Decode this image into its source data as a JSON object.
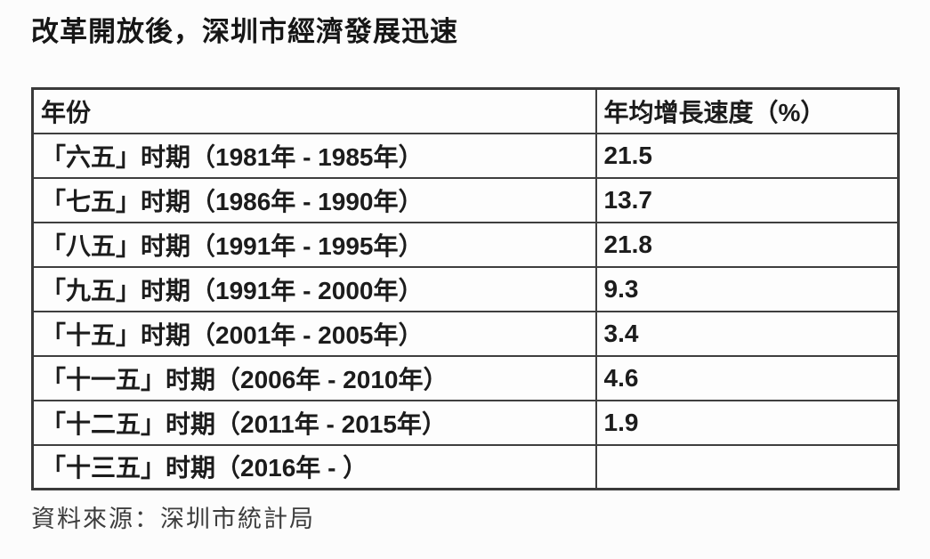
{
  "title": "改革開放後，深圳市經濟發展迅速",
  "table": {
    "headers": [
      "年份",
      "年均增長速度（%）"
    ],
    "rows": [
      {
        "period": "「六五」时期（1981年 - 1985年）",
        "rate": "21.5"
      },
      {
        "period": "「七五」时期（1986年 - 1990年）",
        "rate": "13.7"
      },
      {
        "period": "「八五」时期（1991年 - 1995年）",
        "rate": "21.8"
      },
      {
        "period": "「九五」时期（1991年 - 2000年）",
        "rate": "9.3"
      },
      {
        "period": "「十五」时期（2001年 - 2005年）",
        "rate": "3.4"
      },
      {
        "period": "「十一五」时期（2006年 - 2010年）",
        "rate": "4.6"
      },
      {
        "period": "「十二五」时期（2011年 - 2015年）",
        "rate": "1.9"
      },
      {
        "period": "「十三五」时期（2016年 - ）",
        "rate": ""
      }
    ]
  },
  "source": "資料來源：深圳市統計局",
  "colors": {
    "background": "#fcfcfc",
    "table_border": "#3f3f3f",
    "text": "#1c1c1c",
    "source_text": "#3d3d3d"
  },
  "chart_data": {
    "type": "table",
    "title": "改革開放後，深圳市經濟發展迅速",
    "columns": [
      "年份",
      "年均增長速度（%）"
    ],
    "categories": [
      "「六五」时期（1981年 - 1985年）",
      "「七五」时期（1986年 - 1990年）",
      "「八五」时期（1991年 - 1995年）",
      "「九五」时期（1991年 - 2000年）",
      "「十五」时期（2001年 - 2005年）",
      "「十一五」时期（2006年 - 2010年）",
      "「十二五」时期（2011年 - 2015年）",
      "「十三五」时期（2016年 - ）"
    ],
    "values": [
      21.5,
      13.7,
      21.8,
      9.3,
      3.4,
      4.6,
      1.9,
      null
    ],
    "value_unit": "%",
    "source": "資料來源：深圳市統計局"
  }
}
